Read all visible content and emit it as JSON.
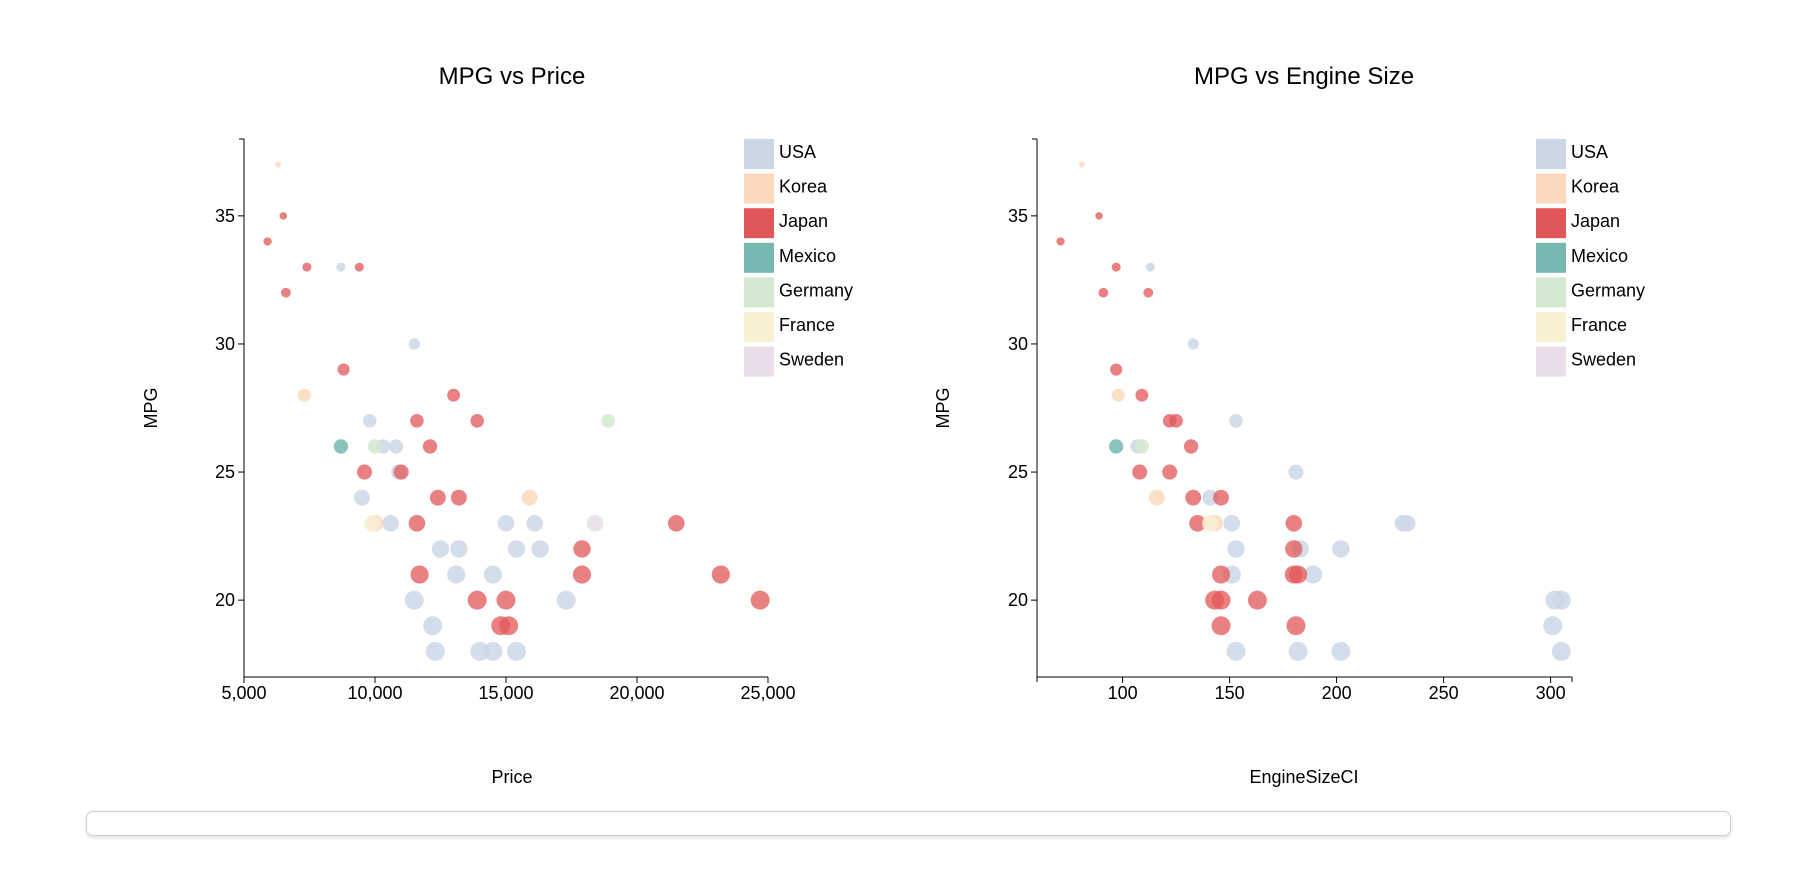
{
  "chart_data": [
    {
      "type": "scatter",
      "title": "MPG vs Price",
      "xlabel": "Price",
      "ylabel": "MPG",
      "xlim": [
        5000,
        25000
      ],
      "ylim": [
        17,
        38
      ],
      "x_ticks": [
        5000,
        10000,
        15000,
        20000,
        25000
      ],
      "x_tick_labels": [
        "5,000",
        "10,000",
        "15,000",
        "20,000",
        "25,000"
      ],
      "y_ticks": [
        20,
        25,
        30,
        35
      ],
      "y_tick_labels": [
        "20",
        "25",
        "30",
        "35"
      ],
      "grid": false,
      "legend_position": "top-right",
      "series": [
        {
          "name": "USA",
          "color": "#ccd7e6",
          "points": [
            [
              8700,
              33
            ],
            [
              11500,
              30
            ],
            [
              9800,
              27
            ],
            [
              10300,
              26
            ],
            [
              10800,
              26
            ],
            [
              9500,
              24
            ],
            [
              10600,
              23
            ],
            [
              15000,
              23
            ],
            [
              16100,
              23
            ],
            [
              12500,
              22
            ],
            [
              13200,
              22
            ],
            [
              15400,
              22
            ],
            [
              16300,
              22
            ],
            [
              13100,
              21
            ],
            [
              14500,
              21
            ],
            [
              11500,
              20
            ],
            [
              17300,
              20
            ],
            [
              12200,
              19
            ],
            [
              12300,
              18
            ],
            [
              14000,
              18
            ],
            [
              14500,
              18
            ],
            [
              15400,
              18
            ],
            [
              10900,
              25
            ]
          ]
        },
        {
          "name": "Korea",
          "color": "#fbd9bd",
          "points": [
            [
              6300,
              37
            ],
            [
              7300,
              28
            ],
            [
              15900,
              24
            ],
            [
              10000,
              23
            ]
          ]
        },
        {
          "name": "Japan",
          "color": "#e15759",
          "points": [
            [
              5900,
              34
            ],
            [
              6500,
              35
            ],
            [
              7400,
              33
            ],
            [
              9400,
              33
            ],
            [
              6600,
              32
            ],
            [
              8800,
              29
            ],
            [
              13000,
              28
            ],
            [
              11600,
              27
            ],
            [
              13900,
              27
            ],
            [
              12100,
              26
            ],
            [
              9600,
              25
            ],
            [
              11000,
              25
            ],
            [
              12400,
              24
            ],
            [
              13200,
              24
            ],
            [
              11600,
              23
            ],
            [
              21500,
              23
            ],
            [
              17900,
              22
            ],
            [
              11700,
              21
            ],
            [
              17900,
              21
            ],
            [
              23200,
              21
            ],
            [
              13900,
              20
            ],
            [
              15000,
              20
            ],
            [
              24700,
              20
            ],
            [
              14800,
              19
            ],
            [
              15100,
              19
            ]
          ]
        },
        {
          "name": "Mexico",
          "color": "#76b7b2",
          "points": [
            [
              8700,
              26
            ]
          ]
        },
        {
          "name": "Germany",
          "color": "#d4e8d0",
          "points": [
            [
              10000,
              26
            ],
            [
              18900,
              27
            ]
          ]
        },
        {
          "name": "France",
          "color": "#f9efd3",
          "points": [
            [
              9900,
              23
            ]
          ]
        },
        {
          "name": "Sweden",
          "color": "#e8dde8",
          "points": [
            [
              18400,
              23
            ]
          ]
        }
      ]
    },
    {
      "type": "scatter",
      "title": "MPG vs Engine Size",
      "xlabel": "EngineSizeCI",
      "ylabel": "MPG",
      "xlim": [
        60,
        310
      ],
      "ylim": [
        17,
        38
      ],
      "x_ticks": [
        100,
        150,
        200,
        250,
        300
      ],
      "x_tick_labels": [
        "100",
        "150",
        "200",
        "250",
        "300"
      ],
      "y_ticks": [
        20,
        25,
        30,
        35
      ],
      "y_tick_labels": [
        "20",
        "25",
        "30",
        "35"
      ],
      "grid": false,
      "legend_position": "top-right",
      "series": [
        {
          "name": "USA",
          "color": "#ccd7e6",
          "points": [
            [
              113,
              33
            ],
            [
              133,
              30
            ],
            [
              153,
              27
            ],
            [
              181,
              25
            ],
            [
              141,
              24
            ],
            [
              151,
              23
            ],
            [
              231,
              23
            ],
            [
              153,
              22
            ],
            [
              202,
              22
            ],
            [
              151,
              21
            ],
            [
              189,
              21
            ],
            [
              302,
              20
            ],
            [
              305,
              20
            ],
            [
              301,
              19
            ],
            [
              153,
              18
            ],
            [
              182,
              18
            ],
            [
              202,
              18
            ],
            [
              305,
              18
            ],
            [
              107,
              26
            ],
            [
              183,
              22
            ],
            [
              233,
              23
            ]
          ]
        },
        {
          "name": "Korea",
          "color": "#fbd9bd",
          "points": [
            [
              81,
              37
            ],
            [
              98,
              28
            ],
            [
              116,
              24
            ],
            [
              143,
              23
            ]
          ]
        },
        {
          "name": "Japan",
          "color": "#e15759",
          "points": [
            [
              71,
              34
            ],
            [
              89,
              35
            ],
            [
              91,
              32
            ],
            [
              97,
              33
            ],
            [
              112,
              32
            ],
            [
              97,
              29
            ],
            [
              109,
              28
            ],
            [
              122,
              27
            ],
            [
              125,
              27
            ],
            [
              132,
              26
            ],
            [
              108,
              25
            ],
            [
              122,
              25
            ],
            [
              133,
              24
            ],
            [
              146,
              24
            ],
            [
              135,
              23
            ],
            [
              180,
              23
            ],
            [
              180,
              22
            ],
            [
              146,
              21
            ],
            [
              180,
              21
            ],
            [
              182,
              21
            ],
            [
              143,
              20
            ],
            [
              146,
              20
            ],
            [
              163,
              20
            ],
            [
              146,
              19
            ],
            [
              181,
              19
            ]
          ]
        },
        {
          "name": "Mexico",
          "color": "#76b7b2",
          "points": [
            [
              97,
              26
            ]
          ]
        },
        {
          "name": "Germany",
          "color": "#d4e8d0",
          "points": [
            [
              109,
              26
            ]
          ]
        },
        {
          "name": "France",
          "color": "#f9efd3",
          "points": [
            [
              141,
              23
            ]
          ]
        },
        {
          "name": "Sweden",
          "color": "#e8dde8",
          "points": []
        }
      ]
    }
  ]
}
